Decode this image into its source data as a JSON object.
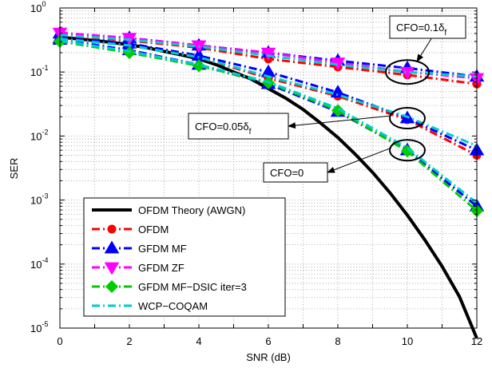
{
  "chart_data": {
    "type": "line",
    "xlabel": "SNR (dB)",
    "ylabel": "SER",
    "xlim": [
      0,
      12
    ],
    "ylim": [
      1e-05,
      1
    ],
    "yscale": "log",
    "grid": true,
    "legend_placement": "bottom-left",
    "x_ticks": [
      "0",
      "2",
      "4",
      "6",
      "8",
      "10",
      "12"
    ],
    "y_ticks": [
      {
        "base": "10",
        "exp": "0"
      },
      {
        "base": "10",
        "exp": "-1"
      },
      {
        "base": "10",
        "exp": "-2"
      },
      {
        "base": "10",
        "exp": "-3"
      },
      {
        "base": "10",
        "exp": "-4"
      },
      {
        "base": "10",
        "exp": "-5"
      }
    ],
    "series": [
      {
        "name": "OFDM Theory (AWGN)",
        "color": "#000000",
        "marker": "none",
        "style": "solid",
        "x": [
          0,
          0.5,
          1,
          1.5,
          2,
          2.5,
          3,
          3.5,
          4,
          4.5,
          5,
          5.5,
          6,
          6.5,
          7,
          7.5,
          8,
          8.5,
          9,
          9.5,
          10,
          10.5,
          11,
          11.5,
          12
        ],
        "y": [
          0.35,
          0.33,
          0.31,
          0.29,
          0.265,
          0.24,
          0.21,
          0.185,
          0.16,
          0.13,
          0.1,
          0.078,
          0.055,
          0.039,
          0.026,
          0.016,
          0.0095,
          0.0052,
          0.0027,
          0.0013,
          0.00058,
          0.00024,
          9.2e-05,
          3.1e-05,
          6.9e-06
        ]
      },
      {
        "name": "OFDM",
        "color": "#ff0000",
        "marker": "circle",
        "style": "dashdot",
        "groups": [
          {
            "x": [
              0,
              2,
              4,
              6,
              8,
              10,
              12
            ],
            "y": [
              0.33,
              0.26,
              0.17,
              0.08,
              0.042,
              0.018,
              0.005
            ]
          },
          {
            "x": [
              0,
              2,
              4,
              6,
              8,
              10,
              12
            ],
            "y": [
              0.37,
              0.31,
              0.24,
              0.16,
              0.12,
              0.09,
              0.065
            ]
          }
        ]
      },
      {
        "name": "GFDM MF",
        "color": "#0000ff",
        "marker": "triangle-up",
        "style": "dashdot",
        "groups": [
          {
            "x": [
              0,
              2,
              4,
              6,
              8,
              10,
              12
            ],
            "y": [
              0.32,
              0.22,
              0.13,
              0.065,
              0.024,
              0.006,
              0.0008
            ]
          },
          {
            "x": [
              0,
              2,
              4,
              6,
              8,
              10,
              12
            ],
            "y": [
              0.34,
              0.28,
              0.18,
              0.1,
              0.048,
              0.019,
              0.006
            ]
          },
          {
            "x": [
              0,
              2,
              4,
              6,
              8,
              10,
              12
            ],
            "y": [
              0.4,
              0.34,
              0.26,
              0.2,
              0.15,
              0.115,
              0.085
            ]
          }
        ]
      },
      {
        "name": "GFDM ZF",
        "color": "#ff00ff",
        "marker": "triangle-down",
        "style": "dashdot",
        "groups": [
          {
            "x": [
              0,
              2,
              4,
              6,
              8,
              10,
              12
            ],
            "y": [
              0.41,
              0.34,
              0.26,
              0.2,
              0.14,
              0.1,
              0.08
            ]
          }
        ]
      },
      {
        "name": "GFDM MF−DSIC iter=3",
        "color": "#00cc00",
        "marker": "diamond",
        "style": "dashdot",
        "groups": [
          {
            "x": [
              0,
              2,
              4,
              6,
              8,
              10,
              12
            ],
            "y": [
              0.3,
              0.2,
              0.125,
              0.068,
              0.025,
              0.0058,
              0.00068
            ]
          }
        ]
      },
      {
        "name": "WCP−COQAM",
        "color": "#00cccc",
        "marker": "none",
        "style": "dashdot",
        "groups": [
          {
            "x": [
              0,
              2,
              4,
              6,
              8,
              10,
              12
            ],
            "y": [
              0.31,
              0.21,
              0.13,
              0.07,
              0.027,
              0.0065,
              0.0009
            ]
          },
          {
            "x": [
              0,
              2,
              4,
              6,
              8,
              10,
              12
            ],
            "y": [
              0.33,
              0.26,
              0.17,
              0.085,
              0.044,
              0.02,
              0.007
            ]
          },
          {
            "x": [
              0,
              2,
              4,
              6,
              8,
              10,
              12
            ],
            "y": [
              0.38,
              0.32,
              0.25,
              0.18,
              0.13,
              0.1,
              0.085
            ]
          }
        ]
      }
    ],
    "annotations": [
      {
        "text": "CFO=0.1δ",
        "sub": "f",
        "target_x": 10,
        "target_y": 0.1
      },
      {
        "text": "CFO=0.05δ",
        "sub": "f",
        "target_x": 10,
        "target_y": 0.019
      },
      {
        "text": "CFO=0",
        "sub": "",
        "target_x": 10,
        "target_y": 0.006
      }
    ]
  }
}
